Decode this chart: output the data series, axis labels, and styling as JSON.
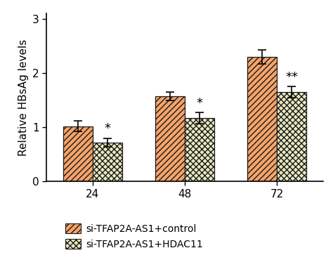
{
  "categories": [
    "24",
    "48",
    "72"
  ],
  "bar1_values": [
    1.02,
    1.57,
    2.3
  ],
  "bar2_values": [
    0.72,
    1.17,
    1.65
  ],
  "bar1_errors": [
    0.1,
    0.08,
    0.13
  ],
  "bar2_errors": [
    0.08,
    0.1,
    0.1
  ],
  "bar1_color": "#F5A46A",
  "bar2_color": "#E8E8C0",
  "bar1_edge_color": "#1a1a1a",
  "bar2_edge_color": "#1a1a1a",
  "bar1_hatch": "////",
  "bar2_hatch": "xxxx",
  "ylabel": "Relative HBsAg levels",
  "ylim": [
    0,
    3.1
  ],
  "yticks": [
    0,
    1,
    2,
    3
  ],
  "significance": [
    "*",
    "*",
    "**"
  ],
  "legend_label1": "si-TFAP2A-AS1+control",
  "legend_label2": "si-TFAP2A-AS1+HDAC11",
  "bar_width": 0.32,
  "group_positions": [
    1,
    2,
    3
  ],
  "sig_fontsize": 13,
  "tick_fontsize": 11,
  "ylabel_fontsize": 11,
  "legend_fontsize": 10
}
